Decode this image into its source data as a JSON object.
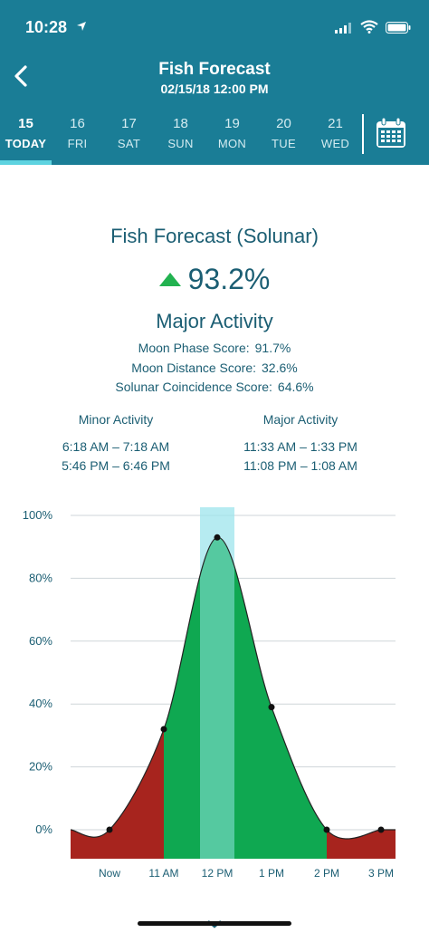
{
  "status_bar": {
    "time": "10:28"
  },
  "nav": {
    "title": "Fish Forecast",
    "subtitle": "02/15/18 12:00 PM"
  },
  "days": [
    {
      "num": "15",
      "name": "TODAY",
      "active": true
    },
    {
      "num": "16",
      "name": "FRI",
      "active": false
    },
    {
      "num": "17",
      "name": "SAT",
      "active": false
    },
    {
      "num": "18",
      "name": "SUN",
      "active": false
    },
    {
      "num": "19",
      "name": "MON",
      "active": false
    },
    {
      "num": "20",
      "name": "TUE",
      "active": false
    },
    {
      "num": "21",
      "name": "WED",
      "active": false
    }
  ],
  "forecast": {
    "title": "Fish Forecast (Solunar)",
    "score": "93.2%",
    "trend_icon": "triangle-up-icon",
    "activity": "Major Activity",
    "scores": [
      {
        "label": "Moon Phase Score:",
        "value": "91.7%"
      },
      {
        "label": "Moon Distance Score:",
        "value": "32.6%"
      },
      {
        "label": "Solunar Coincidence Score:",
        "value": "64.6%"
      }
    ],
    "minor": {
      "heading": "Minor Activity",
      "times": [
        "6:18 AM – 7:18 AM",
        "5:46 PM – 6:46 PM"
      ]
    },
    "major": {
      "heading": "Major Activity",
      "times": [
        "11:33 AM – 1:33 PM",
        "11:08 PM – 1:08 AM"
      ]
    }
  },
  "colors": {
    "header": "#1a7d96",
    "text": "#1b5e73",
    "major_fill": "#0fa851",
    "minor_fill": "#a7241e",
    "highlight": "#9ee4ec",
    "current": "#55c9a0",
    "accent": "#22b250"
  },
  "chart_data": {
    "type": "area",
    "x": [
      "Now",
      "11 AM",
      "12 PM",
      "1 PM",
      "2 PM",
      "3 PM"
    ],
    "points": [
      {
        "x": "Now",
        "y": 0
      },
      {
        "x": "11 AM",
        "y": 32
      },
      {
        "x": "12 PM",
        "y": 93
      },
      {
        "x": "1 PM",
        "y": 39
      },
      {
        "x": "2 PM",
        "y": 0
      },
      {
        "x": "3 PM",
        "y": 0
      }
    ],
    "y_ticks": [
      "0%",
      "20%",
      "40%",
      "60%",
      "80%",
      "100%"
    ],
    "ylim": [
      0,
      100
    ],
    "grid": true,
    "major_activity_range": [
      "11 AM",
      "2 PM"
    ],
    "current_time": "12 PM"
  }
}
